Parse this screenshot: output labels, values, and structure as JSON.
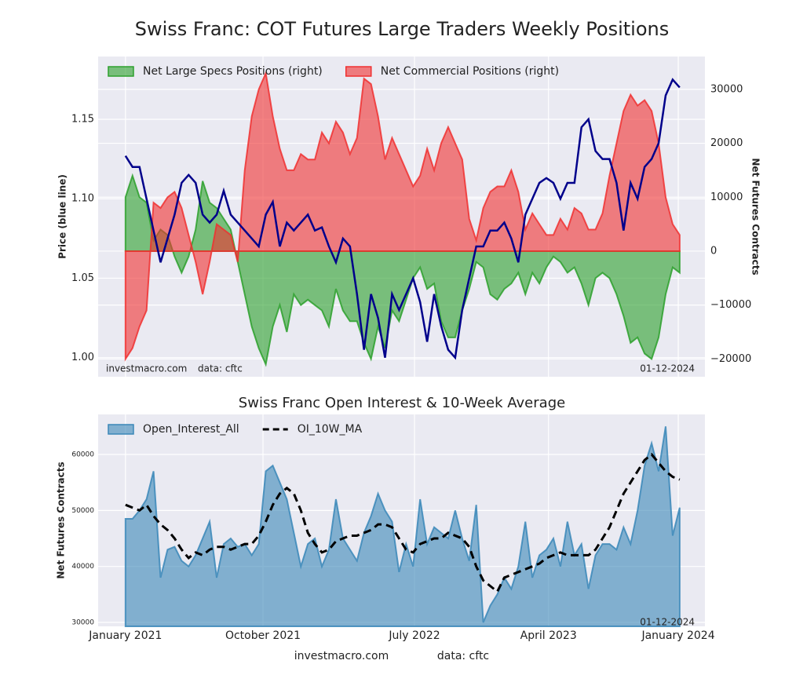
{
  "chart_data": [
    {
      "type": "area",
      "title": "Swiss Franc: COT Futures Large Traders Weekly Positions",
      "ylabel": "Price (blue line)",
      "y2label": "Net Futures Contracts",
      "annotations": [
        "investmacro.com",
        "data: cftc",
        "01-12-2024"
      ],
      "xlim": [
        -3.9,
        82.6
      ],
      "ylim": [
        0.988,
        1.1895
      ],
      "yticks": [
        {
          "value": 1,
          "label": "1.00"
        },
        1.05,
        {
          "value": 1.1,
          "label": "1.10"
        },
        1.15
      ],
      "y2lim": [
        -23300,
        36100
      ],
      "y2ticks": [
        {
          "value": -20000,
          "label": "−20000"
        },
        {
          "value": -10000,
          "label": "−10000"
        },
        0,
        10000,
        20000,
        30000
      ],
      "grid": true,
      "legend": "upper left",
      "series": [
        {
          "name": "Net Large Specs Positions (right)",
          "type": "area",
          "axis": "y2",
          "color": "#2ca02c",
          "values": [
            10000,
            14000,
            10000,
            9000,
            2000,
            4000,
            3000,
            -1000,
            -4000,
            -1000,
            4000,
            13000,
            9000,
            8000,
            6000,
            4000,
            -2000,
            -8000,
            -14000,
            -18000,
            -21000,
            -14000,
            -10000,
            -15000,
            -8000,
            -10000,
            -9000,
            -10000,
            -11000,
            -14000,
            -7000,
            -11000,
            -13000,
            -13000,
            -17000,
            -20000,
            -14000,
            -18000,
            -11000,
            -13000,
            -9000,
            -5000,
            -3000,
            -7000,
            -6000,
            -13000,
            -16000,
            -16000,
            -11000,
            -7000,
            -2000,
            -3000,
            -8000,
            -9000,
            -7000,
            -6000,
            -4000,
            -8000,
            -4000,
            -6000,
            -3000,
            -1000,
            -2000,
            -4000,
            -3000,
            -6000,
            -10000,
            -5000,
            -4000,
            -5000,
            -8000,
            -12000,
            -17000,
            -16000,
            -19000,
            -20000,
            -16000,
            -8000,
            -3000,
            -4000
          ]
        },
        {
          "name": "Net Commercial Positions (right)",
          "type": "area",
          "axis": "y2",
          "color": "#f03030",
          "values": [
            -20000,
            -18000,
            -14000,
            -11000,
            9000,
            8000,
            10000,
            11000,
            8000,
            3000,
            -2000,
            -8000,
            -2000,
            5000,
            4000,
            3000,
            -2000,
            15000,
            25000,
            30000,
            33000,
            25000,
            19000,
            15000,
            15000,
            18000,
            17000,
            17000,
            22000,
            20000,
            24000,
            22000,
            18000,
            21000,
            32000,
            31000,
            25000,
            17000,
            21000,
            18000,
            15000,
            12000,
            14000,
            19000,
            15000,
            20000,
            23000,
            20000,
            17000,
            6000,
            2000,
            8000,
            11000,
            12000,
            12000,
            15000,
            11000,
            4000,
            7000,
            5000,
            3000,
            3000,
            6000,
            4000,
            8000,
            7000,
            4000,
            4000,
            7000,
            14000,
            20000,
            26000,
            29000,
            27000,
            28000,
            26000,
            20000,
            10000,
            5000,
            3000
          ]
        },
        {
          "type": "line",
          "color": "#00008b",
          "values": [
            1.127,
            1.12,
            1.12,
            1.1,
            1.08,
            1.06,
            1.075,
            1.09,
            1.11,
            1.115,
            1.11,
            1.09,
            1.085,
            1.09,
            1.105,
            1.09,
            1.085,
            1.08,
            1.075,
            1.07,
            1.09,
            1.098,
            1.07,
            1.085,
            1.08,
            1.085,
            1.09,
            1.08,
            1.082,
            1.07,
            1.06,
            1.075,
            1.07,
            1.04,
            1.005,
            1.04,
            1.025,
            1.0,
            1.04,
            1.03,
            1.04,
            1.05,
            1.035,
            1.01,
            1.04,
            1.02,
            1.005,
            1.0,
            1.03,
            1.05,
            1.07,
            1.07,
            1.08,
            1.08,
            1.085,
            1.075,
            1.06,
            1.09,
            1.1,
            1.11,
            1.113,
            1.11,
            1.1,
            1.11,
            1.11,
            1.145,
            1.15,
            1.13,
            1.125,
            1.125,
            1.11,
            1.08,
            1.11,
            1.1,
            1.12,
            1.125,
            1.135,
            1.165,
            1.175,
            1.17
          ]
        }
      ]
    },
    {
      "type": "area",
      "title": "Swiss Franc Open Interest & 10-Week Average",
      "ylabel": "Net Futures Contracts",
      "annotations": [
        "01-12-2024"
      ],
      "xlim": [
        -3.9,
        82.6
      ],
      "xticks": [
        {
          "value": 0,
          "label": "January 2021"
        },
        {
          "value": 19.6,
          "label": "October 2021"
        },
        {
          "value": 41.2,
          "label": "July 2022"
        },
        {
          "value": 60.3,
          "label": "April 2023"
        },
        {
          "value": 78.8,
          "label": "January 2024"
        }
      ],
      "ylim": [
        29300,
        67150
      ],
      "yticks": [
        30000,
        40000,
        50000,
        60000
      ],
      "grid": true,
      "legend": "upper left",
      "series": [
        {
          "name": "Open_Interest_All",
          "type": "area",
          "color": "#3a87b8",
          "values": [
            48500,
            48500,
            50000,
            52000,
            57000,
            38000,
            43000,
            43500,
            41000,
            40000,
            42000,
            45000,
            48000,
            38000,
            44000,
            45000,
            43500,
            44000,
            42000,
            44000,
            57000,
            58000,
            55000,
            52000,
            46000,
            40000,
            44000,
            45000,
            40000,
            43000,
            52000,
            45000,
            43000,
            41000,
            46000,
            49000,
            53000,
            50000,
            48000,
            39000,
            44000,
            40000,
            52000,
            44000,
            47000,
            46000,
            45000,
            50000,
            45000,
            41000,
            51000,
            30000,
            33000,
            35000,
            38000,
            36000,
            40000,
            48000,
            38000,
            42000,
            43000,
            45000,
            40000,
            48000,
            42000,
            44000,
            36000,
            42000,
            44000,
            44000,
            43000,
            47000,
            44000,
            50000,
            58000,
            62000,
            57000,
            65000,
            45500,
            50500
          ]
        },
        {
          "name": "OI_10W_MA",
          "type": "line",
          "linestyle": "dashed",
          "color": "#000000",
          "values": [
            51000,
            50500,
            50000,
            51000,
            49000,
            47500,
            46500,
            45000,
            43000,
            41500,
            42500,
            42000,
            43000,
            43500,
            43500,
            43000,
            43500,
            44000,
            44000,
            45500,
            48000,
            51000,
            53000,
            54000,
            53000,
            50000,
            46000,
            44000,
            42500,
            43000,
            44500,
            45000,
            45500,
            45500,
            46000,
            46500,
            47500,
            47500,
            47000,
            45000,
            43000,
            42500,
            44000,
            44500,
            45000,
            45000,
            46000,
            45500,
            45000,
            43500,
            40000,
            37500,
            36500,
            35500,
            38000,
            38500,
            39000,
            39500,
            40000,
            40500,
            41500,
            42000,
            42500,
            42000,
            42000,
            42000,
            42000,
            43000,
            45000,
            47000,
            50000,
            53000,
            55000,
            57000,
            59000,
            60000,
            58500,
            57000,
            56000,
            55500
          ]
        }
      ]
    }
  ],
  "footer": {
    "site": "investmacro.com",
    "source": "data: cftc"
  }
}
